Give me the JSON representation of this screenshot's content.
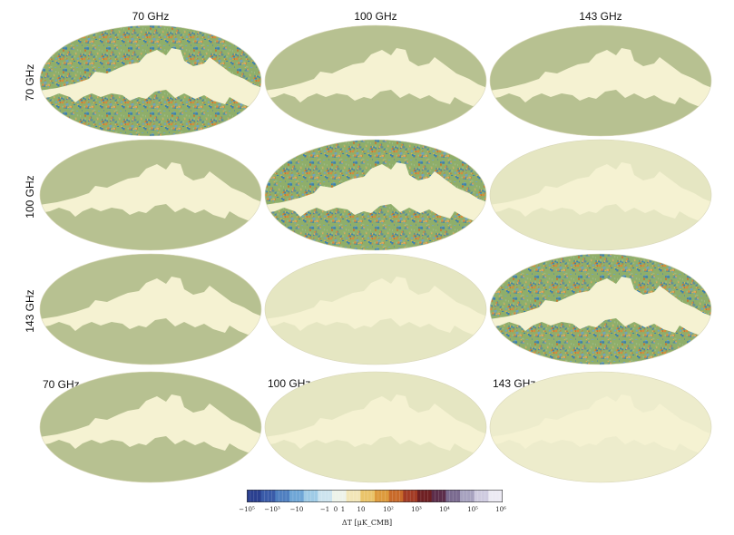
{
  "column_titles": [
    "70 GHz",
    "100 GHz",
    "143 GHz"
  ],
  "row_titles": [
    "70 GHz",
    "100 GHz",
    "143 GHz"
  ],
  "bottom_row_labels": [
    "70 GHz",
    "100 GHz",
    "143 GHz"
  ],
  "colors": {
    "mask": "#f5f2d2",
    "sky_noise": "#8fae6a",
    "sky_smooth": "#b7c191",
    "sky_faint": "#e5e6c2",
    "sky_very_faint": "#edeccc"
  },
  "panels": [
    {
      "row": 0,
      "col": 0,
      "style": "noise"
    },
    {
      "row": 0,
      "col": 1,
      "style": "smooth"
    },
    {
      "row": 0,
      "col": 2,
      "style": "smooth"
    },
    {
      "row": 1,
      "col": 0,
      "style": "smooth"
    },
    {
      "row": 1,
      "col": 1,
      "style": "noise"
    },
    {
      "row": 1,
      "col": 2,
      "style": "faint"
    },
    {
      "row": 2,
      "col": 0,
      "style": "smooth"
    },
    {
      "row": 2,
      "col": 1,
      "style": "faint"
    },
    {
      "row": 2,
      "col": 2,
      "style": "noise"
    },
    {
      "row": 3,
      "col": 0,
      "style": "smooth"
    },
    {
      "row": 3,
      "col": 1,
      "style": "faint"
    },
    {
      "row": 3,
      "col": 2,
      "style": "very_faint"
    }
  ],
  "colorbar": {
    "tick_labels": [
      "−10⁵",
      "−10³",
      "−10",
      "−1",
      "0",
      "1",
      "10",
      "10²",
      "10³",
      "10⁴",
      "10⁵",
      "10⁶"
    ],
    "axis_label": "ΔT [μK_CMB]",
    "segment_colors": [
      "#2a3f8f",
      "#3a5ba8",
      "#4f7fc0",
      "#6fa6d6",
      "#9fcbe6",
      "#cde4ef",
      "#eef3ea",
      "#f2e6b8",
      "#eac46a",
      "#dd9a3c",
      "#c86a2a",
      "#a23b24",
      "#6e1f22",
      "#5c2d4a",
      "#7a6a8f",
      "#a7a2bf",
      "#cfcbe0",
      "#eceaf3"
    ]
  }
}
